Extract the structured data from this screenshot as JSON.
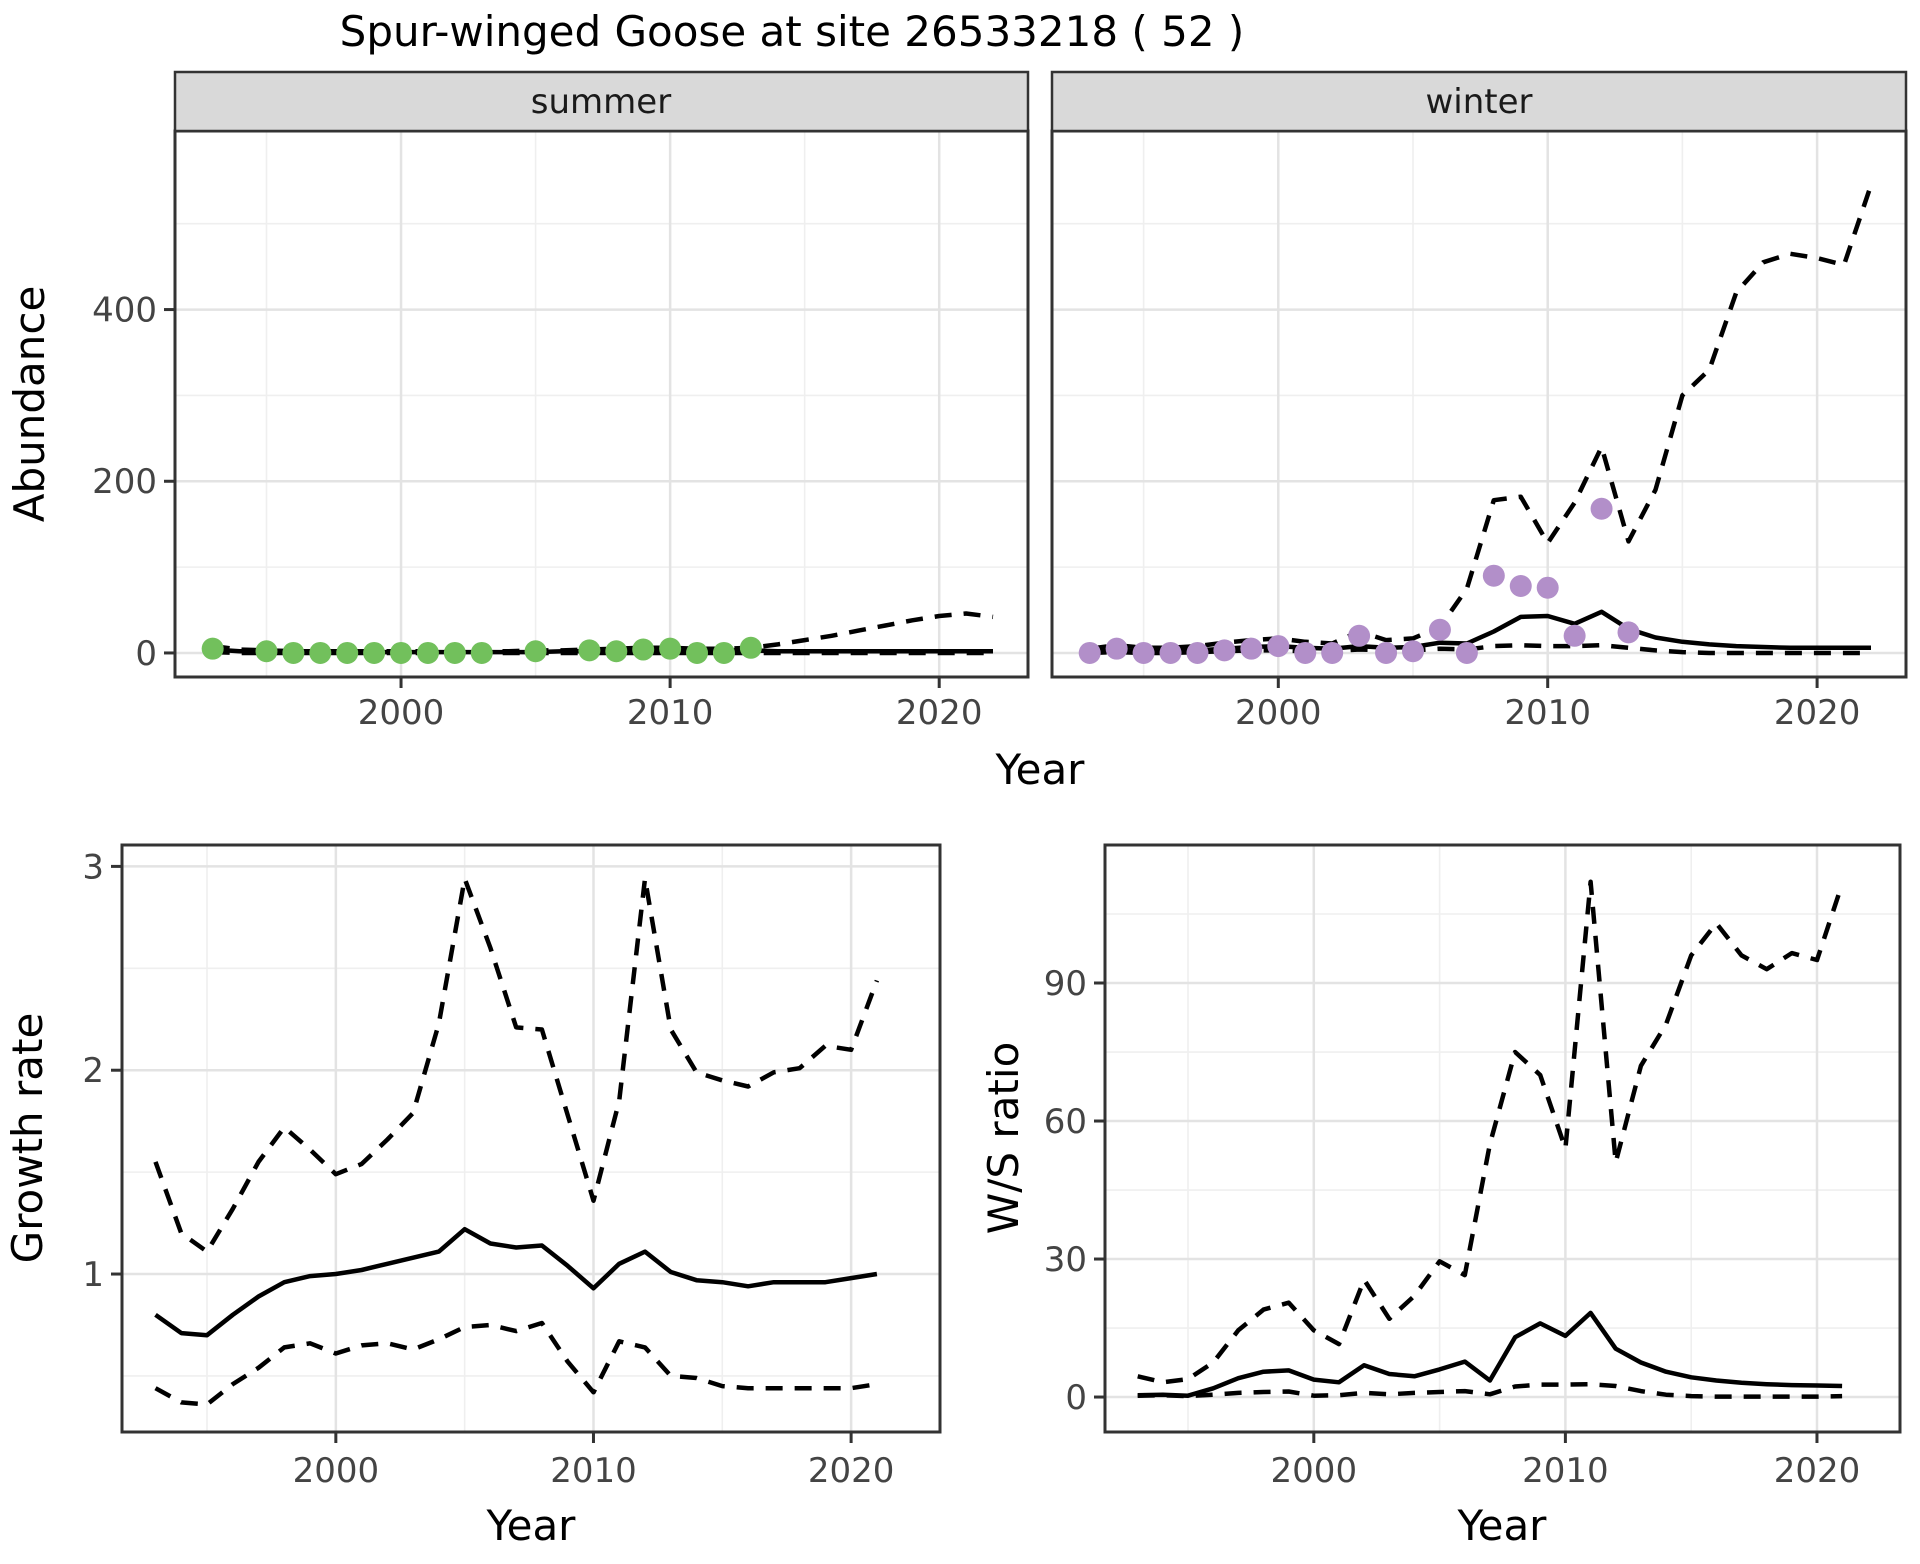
{
  "title": "Spur-winged Goose at site 26533218 ( 52 )",
  "colors": {
    "summer_points": "#72c05c",
    "winter_points": "#b28fc9",
    "line": "#000000",
    "strip_background": "#d9d9d9",
    "panel_border": "#333333",
    "grid_major": "#e3e3e3",
    "grid_minor": "#efefef"
  },
  "chart_data": [
    {
      "id": "abundance-summer",
      "type": "line",
      "facet_label": "summer",
      "xlabel": "Year",
      "ylabel": "Abundance",
      "xlim": [
        1991.6,
        2023.3
      ],
      "ylim": [
        -28,
        608
      ],
      "xticks": [
        2000,
        2010,
        2020
      ],
      "xticks_minor": [
        1995,
        2005,
        2015
      ],
      "yticks": [
        0,
        200,
        400
      ],
      "yticks_minor": [
        100,
        300,
        500
      ],
      "show_y_axis": true,
      "series": [
        {
          "name": "upper-ci",
          "style": "dashed-line",
          "x": [
            1993,
            1994,
            1995,
            1996,
            1997,
            1998,
            1999,
            2000,
            2001,
            2002,
            2003,
            2004,
            2005,
            2006,
            2007,
            2008,
            2009,
            2010,
            2011,
            2012,
            2013,
            2014,
            2015,
            2016,
            2017,
            2018,
            2019,
            2020,
            2021,
            2022
          ],
          "y": [
            8,
            4,
            3,
            2,
            2,
            2,
            2,
            2,
            2,
            2,
            2,
            2,
            3,
            3,
            4,
            5,
            6,
            6,
            5,
            5,
            6,
            10,
            15,
            20,
            26,
            32,
            38,
            43,
            46,
            42
          ]
        },
        {
          "name": "lower-ci",
          "style": "dashed-line",
          "x": [
            1993,
            1994,
            1995,
            1996,
            1997,
            1998,
            1999,
            2000,
            2001,
            2002,
            2003,
            2004,
            2005,
            2006,
            2007,
            2008,
            2009,
            2010,
            2011,
            2012,
            2013,
            2014,
            2015,
            2016,
            2017,
            2018,
            2019,
            2020,
            2021,
            2022
          ],
          "y": [
            1,
            0,
            0,
            0,
            0,
            0,
            0,
            0,
            0,
            0,
            0,
            0,
            0,
            0,
            0,
            0,
            0,
            0,
            0,
            0,
            0,
            0,
            0,
            0,
            0,
            0,
            0,
            0,
            0,
            0
          ]
        },
        {
          "name": "model-median",
          "style": "solid-line",
          "x": [
            1993,
            1994,
            1995,
            1996,
            1997,
            1998,
            1999,
            2000,
            2001,
            2002,
            2003,
            2004,
            2005,
            2006,
            2007,
            2008,
            2009,
            2010,
            2011,
            2012,
            2013,
            2014,
            2015,
            2016,
            2017,
            2018,
            2019,
            2020,
            2021,
            2022
          ],
          "y": [
            4,
            2,
            2,
            1,
            1,
            1,
            1,
            1,
            1,
            1,
            1,
            1,
            1,
            2,
            2,
            3,
            4,
            4,
            3,
            3,
            3,
            2,
            2,
            2,
            2,
            2,
            2,
            2,
            2,
            2
          ]
        },
        {
          "name": "observed-counts",
          "style": "points",
          "color": "#72c05c",
          "x": [
            1993,
            1995,
            1996,
            1997,
            1998,
            1999,
            2000,
            2001,
            2002,
            2003,
            2005,
            2007,
            2008,
            2009,
            2010,
            2011,
            2012,
            2013
          ],
          "y": [
            5,
            2,
            0,
            0,
            0,
            0,
            0,
            0,
            0,
            0,
            2,
            3,
            2,
            4,
            5,
            0,
            0,
            6
          ]
        }
      ]
    },
    {
      "id": "abundance-winter",
      "type": "line",
      "facet_label": "winter",
      "xlabel": "Year",
      "ylabel": "Abundance",
      "xlim": [
        1991.6,
        2023.3
      ],
      "ylim": [
        -28,
        608
      ],
      "xticks": [
        2000,
        2010,
        2020
      ],
      "xticks_minor": [
        1995,
        2005,
        2015
      ],
      "yticks": [
        0,
        200,
        400
      ],
      "yticks_minor": [
        100,
        300,
        500
      ],
      "show_y_axis": false,
      "series": [
        {
          "name": "upper-ci",
          "style": "dashed-line",
          "x": [
            1993,
            1994,
            1995,
            1996,
            1997,
            1998,
            1999,
            2000,
            2001,
            2002,
            2003,
            2004,
            2005,
            2006,
            2007,
            2008,
            2009,
            2010,
            2011,
            2012,
            2013,
            2014,
            2015,
            2016,
            2017,
            2018,
            2019,
            2020,
            2021,
            2022
          ],
          "y": [
            5,
            9,
            6,
            6,
            8,
            12,
            15,
            17,
            13,
            11,
            25,
            15,
            17,
            30,
            75,
            178,
            182,
            128,
            175,
            240,
            130,
            190,
            300,
            330,
            420,
            455,
            465,
            460,
            452,
            545
          ]
        },
        {
          "name": "lower-ci",
          "style": "dashed-line",
          "x": [
            1993,
            1994,
            1995,
            1996,
            1997,
            1998,
            1999,
            2000,
            2001,
            2002,
            2003,
            2004,
            2005,
            2006,
            2007,
            2008,
            2009,
            2010,
            2011,
            2012,
            2013,
            2014,
            2015,
            2016,
            2017,
            2018,
            2019,
            2020,
            2021,
            2022
          ],
          "y": [
            0,
            1,
            0,
            0,
            1,
            2,
            3,
            3,
            2,
            2,
            4,
            3,
            3,
            5,
            4,
            8,
            9,
            8,
            8,
            9,
            6,
            3,
            1,
            0,
            0,
            0,
            0,
            0,
            0,
            0
          ]
        },
        {
          "name": "model-median",
          "style": "solid-line",
          "x": [
            1993,
            1994,
            1995,
            1996,
            1997,
            1998,
            1999,
            2000,
            2001,
            2002,
            2003,
            2004,
            2005,
            2006,
            2007,
            2008,
            2009,
            2010,
            2011,
            2012,
            2013,
            2014,
            2015,
            2016,
            2017,
            2018,
            2019,
            2020,
            2021,
            2022
          ],
          "y": [
            2,
            3,
            2,
            2,
            3,
            5,
            7,
            8,
            6,
            5,
            8,
            6,
            7,
            12,
            11,
            25,
            42,
            43,
            34,
            48,
            28,
            18,
            13,
            10,
            8,
            7,
            6,
            6,
            6,
            6
          ]
        },
        {
          "name": "observed-counts",
          "style": "points",
          "color": "#b28fc9",
          "x": [
            1993,
            1994,
            1995,
            1996,
            1997,
            1998,
            1999,
            2000,
            2001,
            2002,
            2003,
            2004,
            2005,
            2006,
            2007,
            2008,
            2009,
            2010,
            2011,
            2012,
            2013
          ],
          "y": [
            0,
            5,
            0,
            0,
            0,
            3,
            5,
            8,
            0,
            0,
            20,
            0,
            2,
            27,
            0,
            90,
            78,
            76,
            20,
            168,
            24
          ]
        }
      ]
    },
    {
      "id": "growth-rate",
      "type": "line",
      "facet_label": "",
      "xlabel": "Year",
      "ylabel": "Growth rate",
      "xlim": [
        1991.7,
        2023.45
      ],
      "ylim": [
        0.225,
        3.105
      ],
      "xticks": [
        2000,
        2010,
        2020
      ],
      "xticks_minor": [
        1995,
        2005,
        2015
      ],
      "yticks": [
        1,
        2,
        3
      ],
      "yticks_minor": [
        0.5,
        1.5,
        2.5
      ],
      "show_y_axis": true,
      "series": [
        {
          "name": "upper-ci",
          "style": "dashed-line",
          "x": [
            1993,
            1994,
            1995,
            1996,
            1997,
            1998,
            1999,
            2000,
            2001,
            2002,
            2003,
            2004,
            2005,
            2006,
            2007,
            2008,
            2009,
            2010,
            2011,
            2012,
            2013,
            2014,
            2015,
            2016,
            2017,
            2018,
            2019,
            2020,
            2021
          ],
          "y": [
            1.55,
            1.2,
            1.11,
            1.32,
            1.55,
            1.72,
            1.61,
            1.49,
            1.54,
            1.66,
            1.79,
            2.23,
            2.94,
            2.6,
            2.21,
            2.2,
            1.78,
            1.36,
            1.85,
            2.94,
            2.2,
            1.99,
            1.95,
            1.92,
            1.99,
            2.01,
            2.12,
            2.1,
            2.44
          ]
        },
        {
          "name": "lower-ci",
          "style": "dashed-line",
          "x": [
            1993,
            1994,
            1995,
            1996,
            1997,
            1998,
            1999,
            2000,
            2001,
            2002,
            2003,
            2004,
            2005,
            2006,
            2007,
            2008,
            2009,
            2010,
            2011,
            2012,
            2013,
            2014,
            2015,
            2016,
            2017,
            2018,
            2019,
            2020,
            2021
          ],
          "y": [
            0.44,
            0.37,
            0.36,
            0.46,
            0.54,
            0.64,
            0.66,
            0.61,
            0.65,
            0.66,
            0.63,
            0.68,
            0.74,
            0.75,
            0.72,
            0.76,
            0.57,
            0.42,
            0.67,
            0.64,
            0.5,
            0.49,
            0.45,
            0.44,
            0.44,
            0.44,
            0.44,
            0.44,
            0.46
          ]
        },
        {
          "name": "model-median",
          "style": "solid-line",
          "x": [
            1993,
            1994,
            1995,
            1996,
            1997,
            1998,
            1999,
            2000,
            2001,
            2002,
            2003,
            2004,
            2005,
            2006,
            2007,
            2008,
            2009,
            2010,
            2011,
            2012,
            2013,
            2014,
            2015,
            2016,
            2017,
            2018,
            2019,
            2020,
            2021
          ],
          "y": [
            0.8,
            0.71,
            0.7,
            0.8,
            0.89,
            0.96,
            0.99,
            1.0,
            1.02,
            1.05,
            1.08,
            1.11,
            1.22,
            1.15,
            1.13,
            1.14,
            1.04,
            0.93,
            1.05,
            1.11,
            1.01,
            0.97,
            0.96,
            0.94,
            0.96,
            0.96,
            0.96,
            0.98,
            1.0
          ]
        }
      ]
    },
    {
      "id": "ws-ratio",
      "type": "line",
      "facet_label": "",
      "xlabel": "Year",
      "ylabel": "W/S ratio",
      "xlim": [
        1991.7,
        2023.3
      ],
      "ylim": [
        -7.6,
        120
      ],
      "xticks": [
        2000,
        2010,
        2020
      ],
      "xticks_minor": [
        1995,
        2005,
        2015
      ],
      "yticks": [
        0,
        30,
        60,
        90
      ],
      "yticks_minor": [
        15,
        45,
        75,
        105
      ],
      "show_y_axis": true,
      "series": [
        {
          "name": "upper-ci",
          "style": "dashed-line",
          "x": [
            1993,
            1994,
            1995,
            1996,
            1997,
            1998,
            1999,
            2000,
            2001,
            2002,
            2003,
            2004,
            2005,
            2006,
            2007,
            2008,
            2009,
            2010,
            2011,
            2012,
            2013,
            2014,
            2015,
            2016,
            2017,
            2018,
            2019,
            2020,
            2021
          ],
          "y": [
            4.5,
            3.2,
            3.9,
            7.5,
            14.5,
            19.0,
            20.5,
            14.5,
            11.5,
            25.5,
            17.0,
            22.0,
            29.5,
            26.5,
            55.0,
            75.0,
            70.0,
            54.0,
            112.0,
            51.0,
            72.0,
            81.0,
            96.0,
            103.0,
            96.0,
            93.0,
            96.5,
            95.0,
            111.5
          ]
        },
        {
          "name": "lower-ci",
          "style": "dashed-line",
          "x": [
            1993,
            1994,
            1995,
            1996,
            1997,
            1998,
            1999,
            2000,
            2001,
            2002,
            2003,
            2004,
            2005,
            2006,
            2007,
            2008,
            2009,
            2010,
            2011,
            2012,
            2013,
            2014,
            2015,
            2016,
            2017,
            2018,
            2019,
            2020,
            2021
          ],
          "y": [
            0.3,
            0.4,
            0.2,
            0.5,
            0.9,
            1.1,
            1.2,
            0.3,
            0.4,
            0.9,
            0.6,
            0.9,
            1.1,
            1.3,
            0.6,
            2.3,
            2.7,
            2.7,
            2.8,
            2.4,
            1.3,
            0.5,
            0.2,
            0.1,
            0.1,
            0.1,
            0.1,
            0.1,
            0.2
          ]
        },
        {
          "name": "model-median",
          "style": "solid-line",
          "x": [
            1993,
            1994,
            1995,
            1996,
            1997,
            1998,
            1999,
            2000,
            2001,
            2002,
            2003,
            2004,
            2005,
            2006,
            2007,
            2008,
            2009,
            2010,
            2011,
            2012,
            2013,
            2014,
            2015,
            2016,
            2017,
            2018,
            2019,
            2020,
            2021
          ],
          "y": [
            0.4,
            0.5,
            0.3,
            1.9,
            4.1,
            5.5,
            5.8,
            3.8,
            3.2,
            6.9,
            5.0,
            4.5,
            6.0,
            7.7,
            3.6,
            13.0,
            16.0,
            13.3,
            18.3,
            10.5,
            7.5,
            5.5,
            4.3,
            3.6,
            3.1,
            2.8,
            2.6,
            2.5,
            2.4
          ]
        }
      ]
    }
  ]
}
